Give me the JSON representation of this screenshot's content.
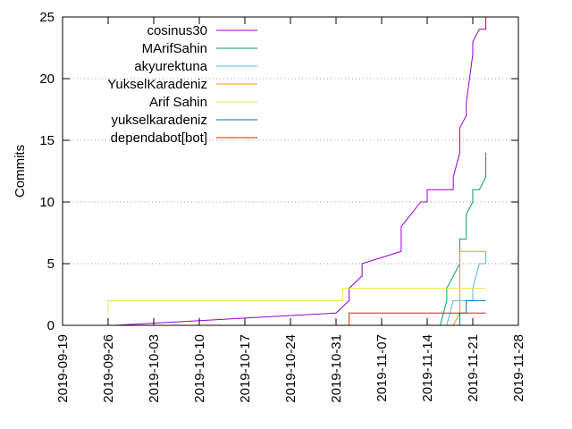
{
  "chart_data": {
    "type": "line",
    "title": "",
    "xlabel": "",
    "ylabel": "Commits",
    "xlim": [
      "2019-09-19",
      "2019-11-28"
    ],
    "ylim": [
      0,
      25
    ],
    "x_ticks": [
      "2019-09-19",
      "2019-09-26",
      "2019-10-03",
      "2019-10-10",
      "2019-10-17",
      "2019-10-24",
      "2019-10-31",
      "2019-11-07",
      "2019-11-14",
      "2019-11-21",
      "2019-11-28"
    ],
    "y_ticks": [
      0,
      5,
      10,
      15,
      20,
      25
    ],
    "grid": "horizontal-dotted",
    "legend_position": "top-left",
    "series": [
      {
        "name": "cosinus30",
        "color": "#9400d3",
        "points": [
          [
            "2019-09-27",
            0
          ],
          [
            "2019-10-31",
            1
          ],
          [
            "2019-11-02",
            2
          ],
          [
            "2019-11-02",
            3
          ],
          [
            "2019-11-04",
            4
          ],
          [
            "2019-11-04",
            5
          ],
          [
            "2019-11-10",
            6
          ],
          [
            "2019-11-10",
            8
          ],
          [
            "2019-11-13",
            10
          ],
          [
            "2019-11-14",
            10
          ],
          [
            "2019-11-14",
            11
          ],
          [
            "2019-11-18",
            11
          ],
          [
            "2019-11-18",
            12
          ],
          [
            "2019-11-19",
            14
          ],
          [
            "2019-11-19",
            16
          ],
          [
            "2019-11-20",
            17
          ],
          [
            "2019-11-20",
            18
          ],
          [
            "2019-11-21",
            22
          ],
          [
            "2019-11-21",
            23
          ],
          [
            "2019-11-22",
            24
          ],
          [
            "2019-11-22",
            24
          ],
          [
            "2019-11-23",
            24
          ],
          [
            "2019-11-23",
            25
          ]
        ]
      },
      {
        "name": "MArifSahin",
        "color": "#009e73",
        "points": [
          [
            "2019-11-16",
            0
          ],
          [
            "2019-11-17",
            2
          ],
          [
            "2019-11-17",
            3
          ],
          [
            "2019-11-19",
            5
          ],
          [
            "2019-11-19",
            7
          ],
          [
            "2019-11-20",
            7
          ],
          [
            "2019-11-20",
            9
          ],
          [
            "2019-11-21",
            10
          ],
          [
            "2019-11-21",
            11
          ],
          [
            "2019-11-22",
            11
          ],
          [
            "2019-11-23",
            12
          ],
          [
            "2019-11-23",
            14
          ]
        ]
      },
      {
        "name": "akyurektuna",
        "color": "#56b4e9",
        "points": [
          [
            "2019-11-17",
            0
          ],
          [
            "2019-11-18",
            2
          ],
          [
            "2019-11-18",
            2
          ],
          [
            "2019-11-21",
            2
          ],
          [
            "2019-11-21",
            3
          ],
          [
            "2019-11-22",
            5
          ],
          [
            "2019-11-23",
            5
          ],
          [
            "2019-11-23",
            6
          ]
        ]
      },
      {
        "name": "YukselKaradeniz",
        "color": "#e69f00",
        "points": [
          [
            "2019-11-18",
            0
          ],
          [
            "2019-11-19",
            1
          ],
          [
            "2019-11-19",
            6
          ],
          [
            "2019-11-23",
            6
          ]
        ]
      },
      {
        "name": "Arif Sahin",
        "color": "#f0e442",
        "points": [
          [
            "2019-09-26",
            1
          ],
          [
            "2019-09-26",
            2
          ],
          [
            "2019-11-01",
            2
          ],
          [
            "2019-11-01",
            3
          ],
          [
            "2019-11-23",
            3
          ]
        ]
      },
      {
        "name": "yukselkaradeniz",
        "color": "#0072b2",
        "points": [
          [
            "2019-11-19",
            0
          ],
          [
            "2019-11-19",
            1
          ],
          [
            "2019-11-20",
            1
          ],
          [
            "2019-11-20",
            2
          ],
          [
            "2019-11-23",
            2
          ]
        ]
      },
      {
        "name": "dependabot[bot]",
        "color": "#e51e10",
        "points": [
          [
            "2019-11-02",
            0
          ],
          [
            "2019-11-02",
            1
          ],
          [
            "2019-11-23",
            1
          ]
        ]
      }
    ]
  }
}
